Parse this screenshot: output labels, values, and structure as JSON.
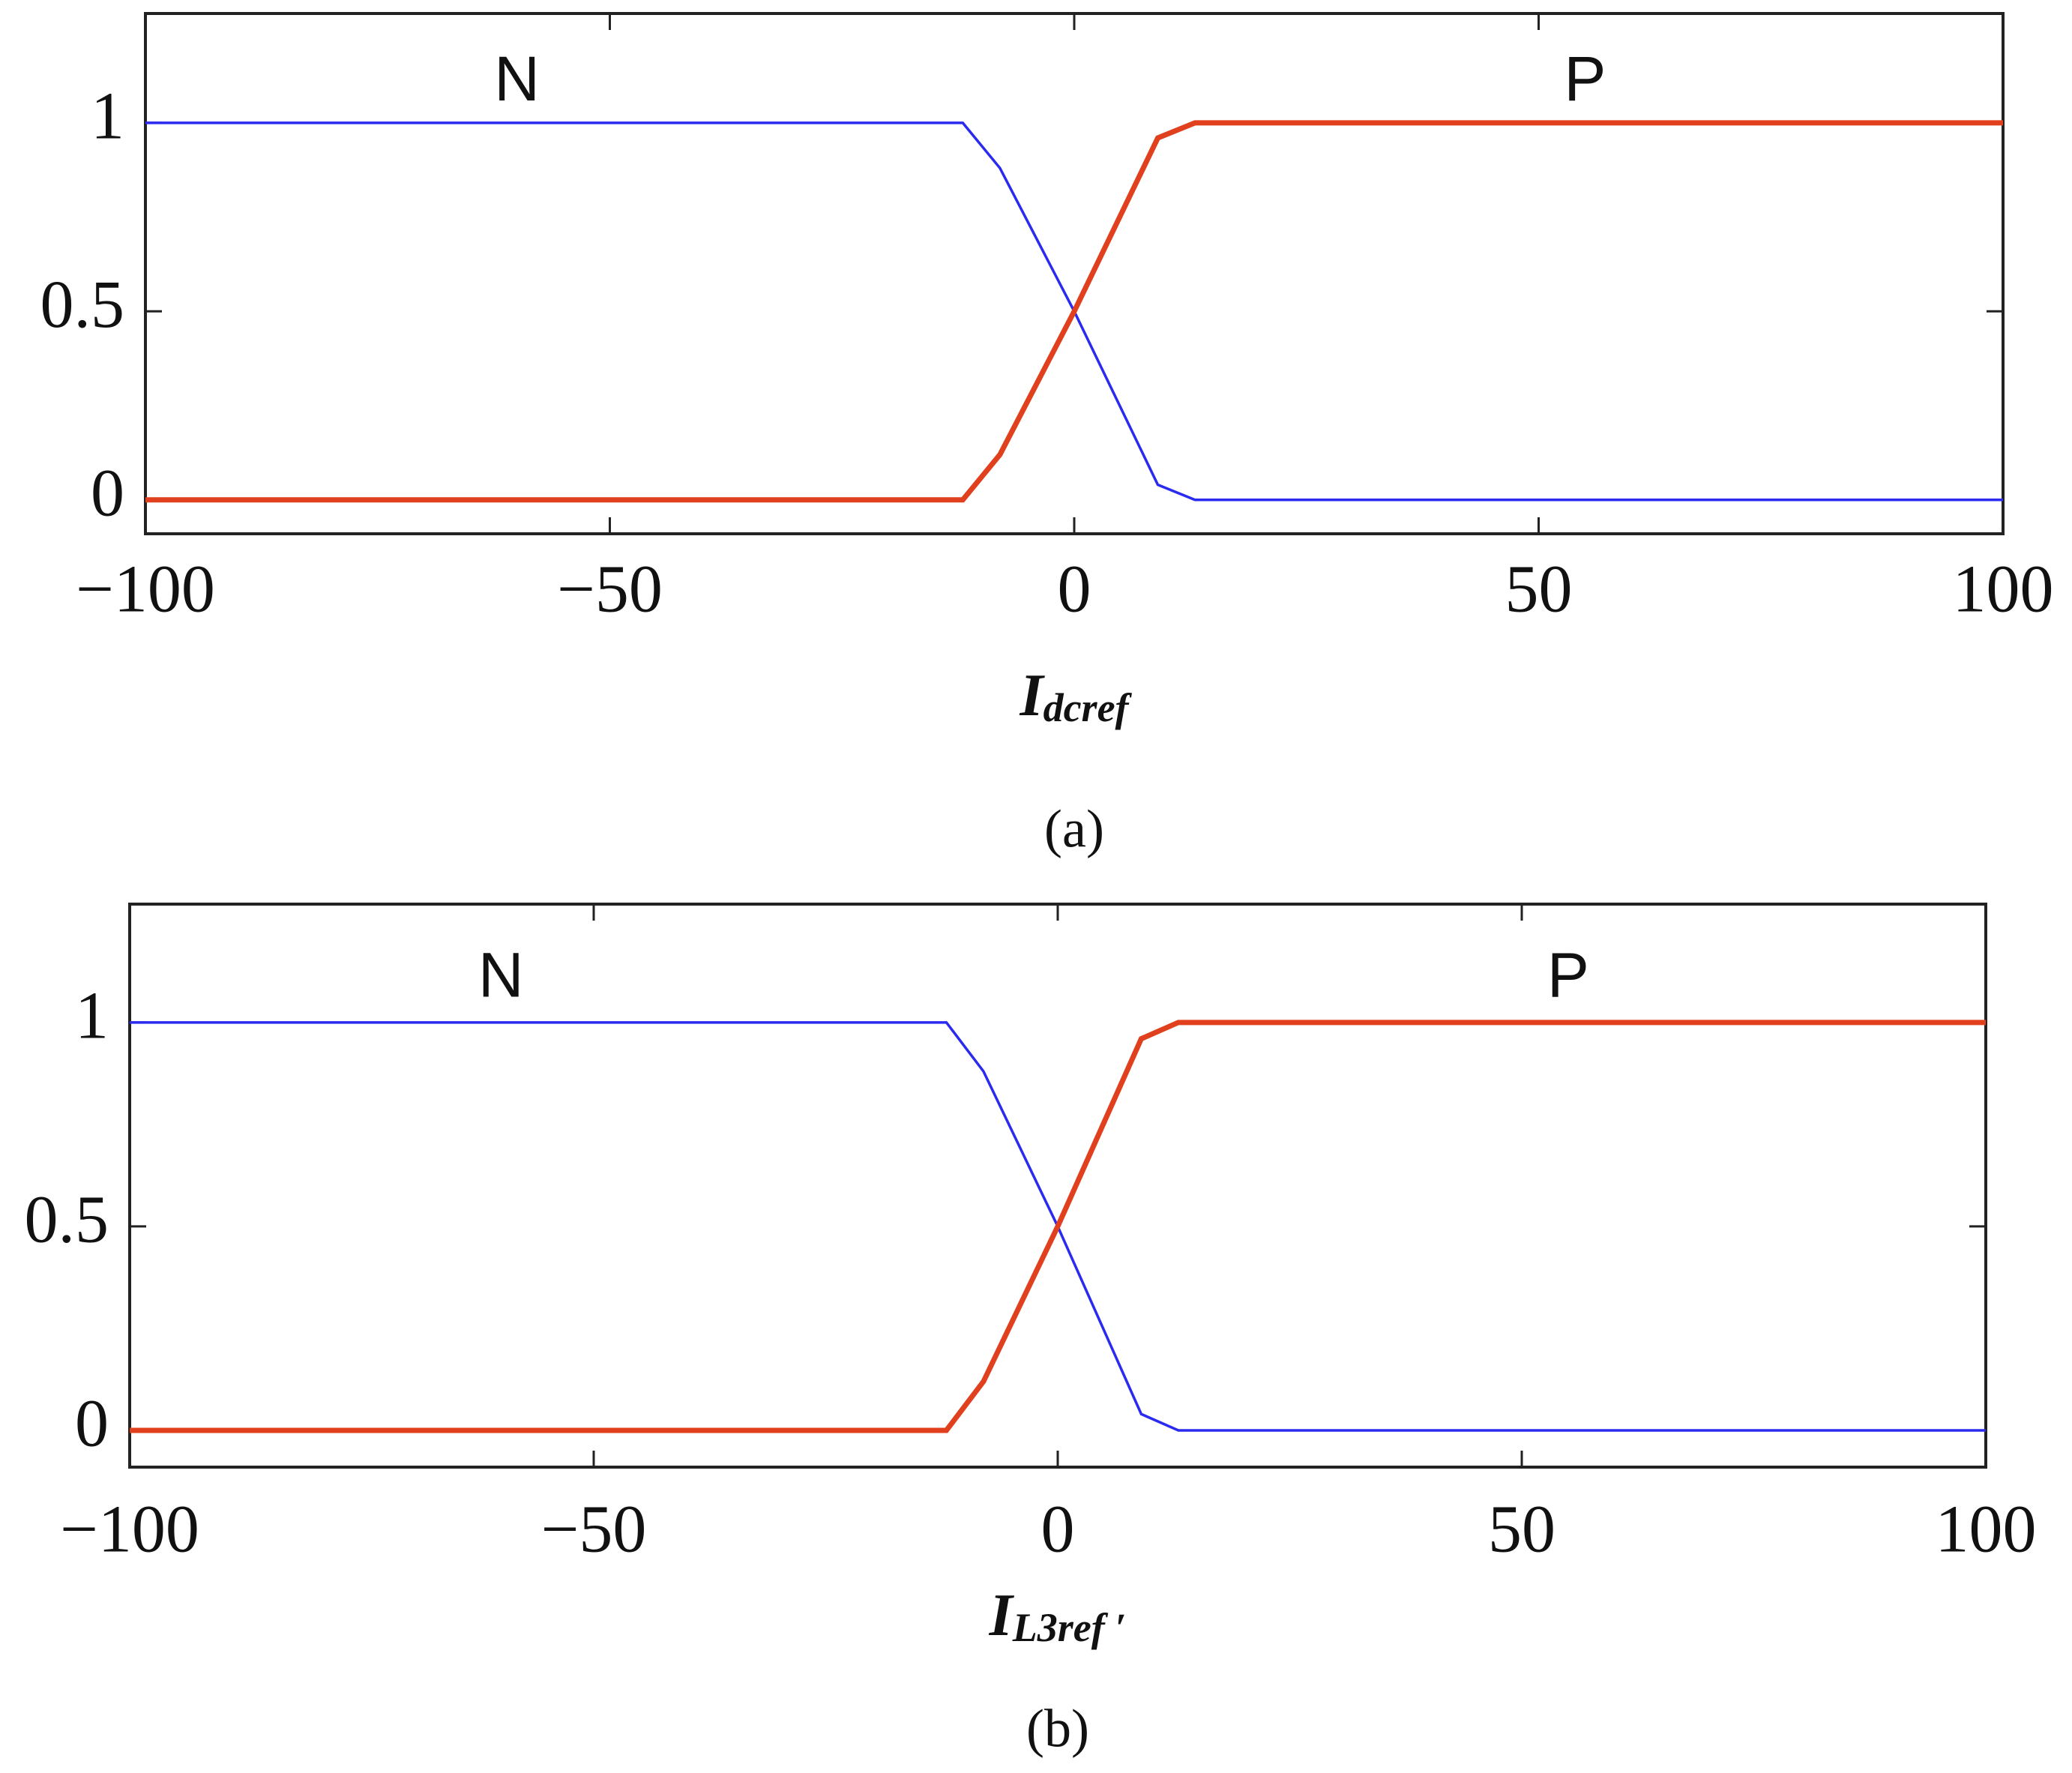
{
  "chart_data": [
    {
      "type": "line",
      "annotations": [
        "N",
        "P"
      ],
      "xlabel_base": "I",
      "xlabel_sub": "dcref",
      "caption": "(a)",
      "x": [
        -100,
        -12,
        -8,
        0,
        9,
        13,
        100
      ],
      "series": [
        {
          "name": "N",
          "color": "#2a2af0",
          "values": [
            1,
            1,
            0.88,
            0.5,
            0.04,
            0,
            0
          ]
        },
        {
          "name": "P",
          "color": "#e0401e",
          "values": [
            0,
            0,
            0.12,
            0.5,
            0.96,
            1,
            1
          ]
        }
      ],
      "xlim": [
        -100,
        100
      ],
      "ylim": [
        -0.09,
        1.29
      ],
      "xticks": [
        {
          "value": -100,
          "label": "−100"
        },
        {
          "value": -50,
          "label": "−50"
        },
        0,
        50,
        100
      ],
      "yticks": [
        0,
        0.5,
        1
      ]
    },
    {
      "type": "line",
      "annotations": [
        "N",
        "P"
      ],
      "xlabel_base": "I",
      "xlabel_sub": "L3ref ′",
      "caption": "(b)",
      "x": [
        -100,
        -12,
        -8,
        0,
        9,
        13,
        100
      ],
      "series": [
        {
          "name": "N",
          "color": "#2a2af0",
          "values": [
            1,
            1,
            0.88,
            0.5,
            0.04,
            0,
            0
          ]
        },
        {
          "name": "P",
          "color": "#e0401e",
          "values": [
            0,
            0,
            0.12,
            0.5,
            0.96,
            1,
            1
          ]
        }
      ],
      "xlim": [
        -100,
        100
      ],
      "ylim": [
        -0.09,
        1.29
      ],
      "xticks": [
        {
          "value": -100,
          "label": "−100"
        },
        {
          "value": -50,
          "label": "−50"
        },
        0,
        50,
        100
      ],
      "yticks": [
        0,
        0.5,
        1
      ]
    }
  ]
}
